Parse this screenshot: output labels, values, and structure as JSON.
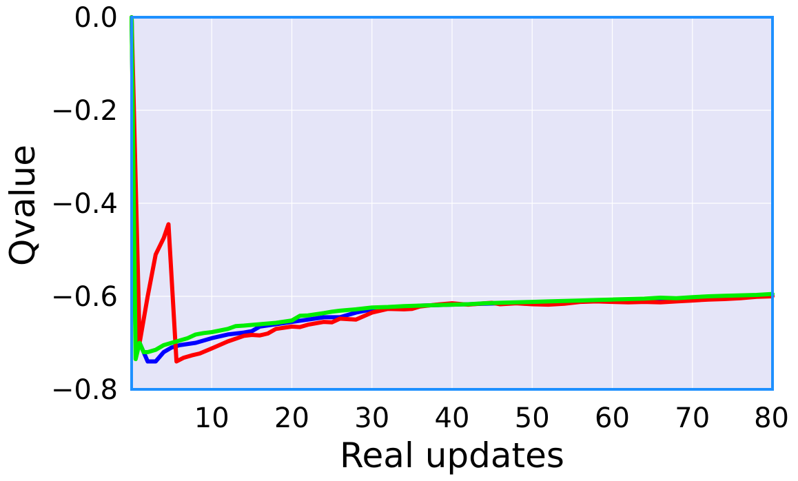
{
  "chart_data": {
    "type": "line",
    "title": "",
    "xlabel": "Real updates",
    "ylabel": "Qvalue",
    "xlim": [
      0,
      80
    ],
    "ylim": [
      -0.8,
      0.0
    ],
    "x_ticks": [
      10,
      20,
      30,
      40,
      50,
      60,
      70,
      80
    ],
    "x_tick_labels": [
      "10",
      "20",
      "30",
      "40",
      "50",
      "60",
      "70",
      "80"
    ],
    "y_ticks": [
      0.0,
      -0.2,
      -0.4,
      -0.6,
      -0.8
    ],
    "y_tick_labels": [
      "0.0",
      "−0.2",
      "−0.4",
      "−0.6",
      "−0.8"
    ],
    "grid": true,
    "colors": {
      "plot_background": "#e5e5f8",
      "frame": "#1e90ff",
      "grid": "#ffffff"
    },
    "series": [
      {
        "color": "#0000ff",
        "points": [
          [
            0,
            0
          ],
          [
            0.5,
            -0.7
          ],
          [
            1,
            -0.7
          ],
          [
            2,
            -0.74
          ],
          [
            3,
            -0.74
          ],
          [
            4,
            -0.72
          ],
          [
            5,
            -0.71
          ],
          [
            6,
            -0.705
          ],
          [
            8,
            -0.7
          ],
          [
            10,
            -0.69
          ],
          [
            12,
            -0.682
          ],
          [
            14,
            -0.678
          ],
          [
            15,
            -0.675
          ],
          [
            16,
            -0.665
          ],
          [
            18,
            -0.66
          ],
          [
            20,
            -0.655
          ],
          [
            22,
            -0.65
          ],
          [
            24,
            -0.645
          ],
          [
            26,
            -0.645
          ],
          [
            28,
            -0.635
          ],
          [
            30,
            -0.628
          ],
          [
            32,
            -0.626
          ],
          [
            34,
            -0.624
          ],
          [
            36,
            -0.62
          ],
          [
            38,
            -0.619
          ],
          [
            40,
            -0.618
          ],
          [
            42,
            -0.617
          ],
          [
            44,
            -0.616
          ],
          [
            46,
            -0.615
          ],
          [
            48,
            -0.614
          ],
          [
            50,
            -0.613
          ],
          [
            52,
            -0.612
          ],
          [
            54,
            -0.611
          ],
          [
            56,
            -0.61
          ],
          [
            58,
            -0.609
          ],
          [
            60,
            -0.609
          ],
          [
            62,
            -0.608
          ],
          [
            64,
            -0.607
          ],
          [
            66,
            -0.607
          ],
          [
            68,
            -0.606
          ],
          [
            70,
            -0.605
          ],
          [
            72,
            -0.604
          ],
          [
            74,
            -0.603
          ],
          [
            76,
            -0.602
          ],
          [
            78,
            -0.6
          ],
          [
            80,
            -0.599
          ]
        ]
      },
      {
        "color": "#ff0000",
        "points": [
          [
            0,
            0
          ],
          [
            1,
            -0.7
          ],
          [
            2,
            -0.6
          ],
          [
            3,
            -0.51
          ],
          [
            4,
            -0.475
          ],
          [
            4.6,
            -0.445
          ],
          [
            5.6,
            -0.74
          ],
          [
            6.5,
            -0.732
          ],
          [
            7.5,
            -0.727
          ],
          [
            8.5,
            -0.723
          ],
          [
            10,
            -0.712
          ],
          [
            12,
            -0.697
          ],
          [
            14,
            -0.685
          ],
          [
            15,
            -0.683
          ],
          [
            16,
            -0.684
          ],
          [
            17,
            -0.68
          ],
          [
            18,
            -0.67
          ],
          [
            20,
            -0.665
          ],
          [
            21,
            -0.666
          ],
          [
            22,
            -0.661
          ],
          [
            24,
            -0.655
          ],
          [
            25,
            -0.656
          ],
          [
            26,
            -0.648
          ],
          [
            28,
            -0.65
          ],
          [
            30,
            -0.635
          ],
          [
            32,
            -0.627
          ],
          [
            34,
            -0.628
          ],
          [
            35,
            -0.627
          ],
          [
            36,
            -0.622
          ],
          [
            38,
            -0.618
          ],
          [
            40,
            -0.615
          ],
          [
            42,
            -0.618
          ],
          [
            44,
            -0.615
          ],
          [
            45,
            -0.614
          ],
          [
            46,
            -0.617
          ],
          [
            48,
            -0.615
          ],
          [
            50,
            -0.617
          ],
          [
            52,
            -0.618
          ],
          [
            54,
            -0.616
          ],
          [
            56,
            -0.612
          ],
          [
            58,
            -0.611
          ],
          [
            60,
            -0.612
          ],
          [
            62,
            -0.613
          ],
          [
            64,
            -0.612
          ],
          [
            66,
            -0.613
          ],
          [
            68,
            -0.611
          ],
          [
            70,
            -0.609
          ],
          [
            72,
            -0.607
          ],
          [
            74,
            -0.606
          ],
          [
            76,
            -0.604
          ],
          [
            78,
            -0.601
          ],
          [
            80,
            -0.6
          ]
        ]
      },
      {
        "color": "#00ee00",
        "points": [
          [
            0,
            0
          ],
          [
            0.5,
            -0.735
          ],
          [
            1,
            -0.7
          ],
          [
            1.5,
            -0.72
          ],
          [
            2,
            -0.72
          ],
          [
            3,
            -0.715
          ],
          [
            4,
            -0.705
          ],
          [
            5,
            -0.7
          ],
          [
            6,
            -0.695
          ],
          [
            7,
            -0.69
          ],
          [
            8,
            -0.682
          ],
          [
            9,
            -0.679
          ],
          [
            10,
            -0.677
          ],
          [
            12,
            -0.67
          ],
          [
            13,
            -0.664
          ],
          [
            14,
            -0.663
          ],
          [
            16,
            -0.66
          ],
          [
            18,
            -0.657
          ],
          [
            20,
            -0.652
          ],
          [
            21,
            -0.642
          ],
          [
            22,
            -0.641
          ],
          [
            24,
            -0.636
          ],
          [
            25,
            -0.633
          ],
          [
            26,
            -0.631
          ],
          [
            28,
            -0.628
          ],
          [
            30,
            -0.624
          ],
          [
            32,
            -0.623
          ],
          [
            34,
            -0.621
          ],
          [
            36,
            -0.62
          ],
          [
            38,
            -0.619
          ],
          [
            40,
            -0.618
          ],
          [
            42,
            -0.617
          ],
          [
            44,
            -0.615
          ],
          [
            46,
            -0.614
          ],
          [
            48,
            -0.613
          ],
          [
            50,
            -0.612
          ],
          [
            52,
            -0.611
          ],
          [
            54,
            -0.61
          ],
          [
            56,
            -0.609
          ],
          [
            58,
            -0.608
          ],
          [
            60,
            -0.607
          ],
          [
            62,
            -0.606
          ],
          [
            64,
            -0.605
          ],
          [
            66,
            -0.603
          ],
          [
            68,
            -0.604
          ],
          [
            70,
            -0.602
          ],
          [
            72,
            -0.6
          ],
          [
            74,
            -0.599
          ],
          [
            76,
            -0.598
          ],
          [
            78,
            -0.597
          ],
          [
            80,
            -0.595
          ]
        ]
      }
    ]
  }
}
